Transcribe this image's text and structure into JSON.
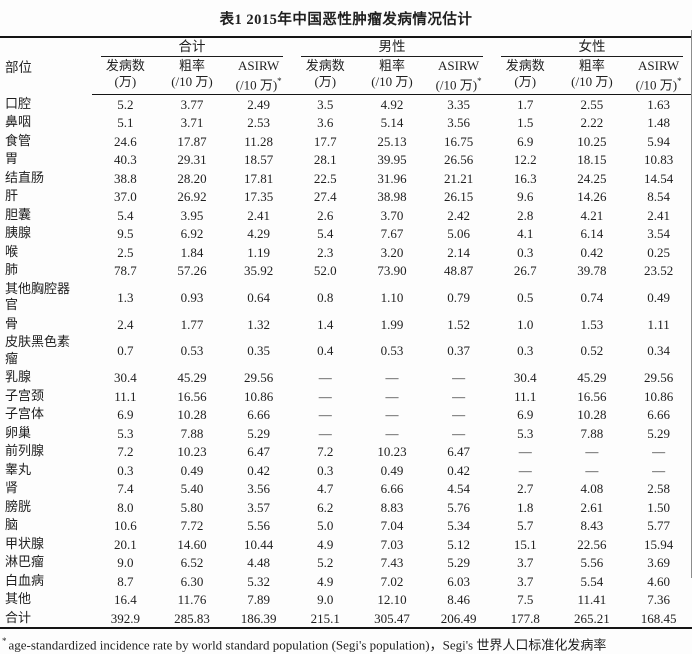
{
  "table": {
    "title": "表1  2015年中国恶性肿瘤发病情况估计",
    "site_header": "部位",
    "groups": [
      {
        "label": "合计"
      },
      {
        "label": "男性"
      },
      {
        "label": "女性"
      }
    ],
    "sub_headers": [
      {
        "line1": "发病数",
        "line2": "(万)"
      },
      {
        "line1": "粗率",
        "line2": "(/10 万)"
      },
      {
        "line1": "ASIRW",
        "line2": "(/10 万)",
        "sup": "*"
      }
    ],
    "rows": [
      {
        "site": "口腔",
        "values": [
          "5.2",
          "3.77",
          "2.49",
          "3.5",
          "4.92",
          "3.35",
          "1.7",
          "2.55",
          "1.63"
        ]
      },
      {
        "site": "鼻咽",
        "values": [
          "5.1",
          "3.71",
          "2.53",
          "3.6",
          "5.14",
          "3.56",
          "1.5",
          "2.22",
          "1.48"
        ]
      },
      {
        "site": "食管",
        "values": [
          "24.6",
          "17.87",
          "11.28",
          "17.7",
          "25.13",
          "16.75",
          "6.9",
          "10.25",
          "5.94"
        ]
      },
      {
        "site": "胃",
        "values": [
          "40.3",
          "29.31",
          "18.57",
          "28.1",
          "39.95",
          "26.56",
          "12.2",
          "18.15",
          "10.83"
        ]
      },
      {
        "site": "结直肠",
        "values": [
          "38.8",
          "28.20",
          "17.81",
          "22.5",
          "31.96",
          "21.21",
          "16.3",
          "24.25",
          "14.54"
        ]
      },
      {
        "site": "肝",
        "values": [
          "37.0",
          "26.92",
          "17.35",
          "27.4",
          "38.98",
          "26.15",
          "9.6",
          "14.26",
          "8.54"
        ]
      },
      {
        "site": "胆囊",
        "values": [
          "5.4",
          "3.95",
          "2.41",
          "2.6",
          "3.70",
          "2.42",
          "2.8",
          "4.21",
          "2.41"
        ]
      },
      {
        "site": "胰腺",
        "values": [
          "9.5",
          "6.92",
          "4.29",
          "5.4",
          "7.67",
          "5.06",
          "4.1",
          "6.14",
          "3.54"
        ]
      },
      {
        "site": "喉",
        "values": [
          "2.5",
          "1.84",
          "1.19",
          "2.3",
          "3.20",
          "2.14",
          "0.3",
          "0.42",
          "0.25"
        ]
      },
      {
        "site": "肺",
        "values": [
          "78.7",
          "57.26",
          "35.92",
          "52.0",
          "73.90",
          "48.87",
          "26.7",
          "39.78",
          "23.52"
        ]
      },
      {
        "site": "其他胸腔器官",
        "values": [
          "1.3",
          "0.93",
          "0.64",
          "0.8",
          "1.10",
          "0.79",
          "0.5",
          "0.74",
          "0.49"
        ]
      },
      {
        "site": "骨",
        "values": [
          "2.4",
          "1.77",
          "1.32",
          "1.4",
          "1.99",
          "1.52",
          "1.0",
          "1.53",
          "1.11"
        ]
      },
      {
        "site": "皮肤黑色素瘤",
        "values": [
          "0.7",
          "0.53",
          "0.35",
          "0.4",
          "0.53",
          "0.37",
          "0.3",
          "0.52",
          "0.34"
        ]
      },
      {
        "site": "乳腺",
        "values": [
          "30.4",
          "45.29",
          "29.56",
          "—",
          "—",
          "—",
          "30.4",
          "45.29",
          "29.56"
        ]
      },
      {
        "site": "子宫颈",
        "values": [
          "11.1",
          "16.56",
          "10.86",
          "—",
          "—",
          "—",
          "11.1",
          "16.56",
          "10.86"
        ]
      },
      {
        "site": "子宫体",
        "values": [
          "6.9",
          "10.28",
          "6.66",
          "—",
          "—",
          "—",
          "6.9",
          "10.28",
          "6.66"
        ]
      },
      {
        "site": "卵巢",
        "values": [
          "5.3",
          "7.88",
          "5.29",
          "—",
          "—",
          "—",
          "5.3",
          "7.88",
          "5.29"
        ]
      },
      {
        "site": "前列腺",
        "values": [
          "7.2",
          "10.23",
          "6.47",
          "7.2",
          "10.23",
          "6.47",
          "—",
          "—",
          "—"
        ]
      },
      {
        "site": "睾丸",
        "values": [
          "0.3",
          "0.49",
          "0.42",
          "0.3",
          "0.49",
          "0.42",
          "—",
          "—",
          "—"
        ]
      },
      {
        "site": "肾",
        "values": [
          "7.4",
          "5.40",
          "3.56",
          "4.7",
          "6.66",
          "4.54",
          "2.7",
          "4.08",
          "2.58"
        ]
      },
      {
        "site": "膀胱",
        "values": [
          "8.0",
          "5.80",
          "3.57",
          "6.2",
          "8.83",
          "5.76",
          "1.8",
          "2.61",
          "1.50"
        ]
      },
      {
        "site": "脑",
        "values": [
          "10.6",
          "7.72",
          "5.56",
          "5.0",
          "7.04",
          "5.34",
          "5.7",
          "8.43",
          "5.77"
        ]
      },
      {
        "site": "甲状腺",
        "values": [
          "20.1",
          "14.60",
          "10.44",
          "4.9",
          "7.03",
          "5.12",
          "15.1",
          "22.56",
          "15.94"
        ]
      },
      {
        "site": "淋巴瘤",
        "values": [
          "9.0",
          "6.52",
          "4.48",
          "5.2",
          "7.43",
          "5.29",
          "3.7",
          "5.56",
          "3.69"
        ]
      },
      {
        "site": "白血病",
        "values": [
          "8.7",
          "6.30",
          "5.32",
          "4.9",
          "7.02",
          "6.03",
          "3.7",
          "5.54",
          "4.60"
        ]
      },
      {
        "site": "其他",
        "values": [
          "16.4",
          "11.76",
          "7.89",
          "9.0",
          "12.10",
          "8.46",
          "7.5",
          "11.41",
          "7.36"
        ]
      },
      {
        "site": "合计",
        "values": [
          "392.9",
          "285.83",
          "186.39",
          "215.1",
          "305.47",
          "206.49",
          "177.8",
          "265.21",
          "168.45"
        ]
      }
    ],
    "footnote_marker": "*",
    "footnote": "age-standardized incidence rate by world standard population (Segi's population)，Segi's 世界人口标准化发病率"
  }
}
